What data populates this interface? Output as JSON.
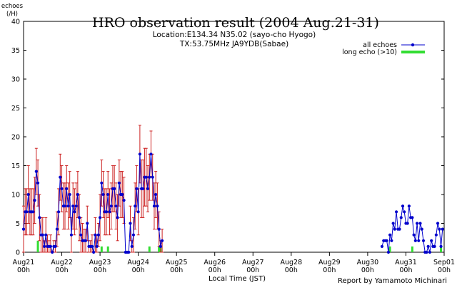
{
  "chart_data": {
    "type": "line",
    "title": "HRO observation result (2004 Aug.21-31)",
    "subtitle_lines": [
      "Location:E134.34 N35.02 (sayo-cho Hyogo)",
      "TX:53.75MHz JA9YDB(Sabae)"
    ],
    "ylabel_lines": [
      "echoes",
      "(/H)"
    ],
    "xlabel": "Local Time (JST)",
    "credit": "Report by Yamamoto Michinari",
    "ylim": [
      0,
      40
    ],
    "yticks": [
      0,
      5,
      10,
      15,
      20,
      25,
      30,
      35,
      40
    ],
    "x_unit": "days since Aug21 00h",
    "xlim": [
      0,
      11
    ],
    "xtick_labels": [
      [
        "Aug21",
        "00h"
      ],
      [
        "Aug22",
        "00h"
      ],
      [
        "Aug23",
        "00h"
      ],
      [
        "Aug24",
        "00h"
      ],
      [
        "Aug25",
        "00h"
      ],
      [
        "Aug26",
        "00h"
      ],
      [
        "Aug27",
        "00h"
      ],
      [
        "Aug28",
        "00h"
      ],
      [
        "Aug29",
        "00h"
      ],
      [
        "Aug30",
        "00h"
      ],
      [
        "Aug31",
        "00h"
      ],
      [
        "Sep01",
        "00h"
      ]
    ],
    "grid": false,
    "legend": {
      "position": "top-right"
    },
    "colors": {
      "all": "#0000cc",
      "errorbar": "#cc2222",
      "long": "#33dd33",
      "axis": "#000000"
    },
    "series": [
      {
        "name": "all echoes",
        "segments": [
          {
            "x": [
              0.0,
              0.042,
              0.083,
              0.125,
              0.167,
              0.208,
              0.25,
              0.292,
              0.333,
              0.375,
              0.417,
              0.458,
              0.5,
              0.542,
              0.583,
              0.625,
              0.667,
              0.708,
              0.75,
              0.792,
              0.833,
              0.875,
              0.917,
              0.958,
              1.0,
              1.042,
              1.083,
              1.125,
              1.167,
              1.208,
              1.25,
              1.292,
              1.333,
              1.375,
              1.417,
              1.458,
              1.5,
              1.542,
              1.583,
              1.625,
              1.667,
              1.708,
              1.75,
              1.792,
              1.833,
              1.875,
              1.917,
              1.958,
              2.0,
              2.042,
              2.083,
              2.125,
              2.167,
              2.208,
              2.25,
              2.292,
              2.333,
              2.375,
              2.417,
              2.458,
              2.5,
              2.542,
              2.583,
              2.625,
              2.667,
              2.708,
              2.75,
              2.792,
              2.833,
              2.875,
              2.917,
              2.958,
              3.0,
              3.042,
              3.083,
              3.125,
              3.167,
              3.208,
              3.25,
              3.292,
              3.333,
              3.375,
              3.417,
              3.458,
              3.5,
              3.542,
              3.583,
              3.625
            ],
            "y": [
              4,
              7,
              7,
              10,
              7,
              7,
              7,
              9,
              14,
              12,
              6,
              3,
              3,
              1,
              3,
              1,
              1,
              1,
              0,
              1,
              1,
              4,
              7,
              13,
              11,
              8,
              8,
              11,
              8,
              10,
              3,
              8,
              7,
              8,
              10,
              6,
              3,
              2,
              2,
              2,
              5,
              1,
              1,
              1,
              0,
              3,
              1,
              3,
              6,
              12,
              10,
              7,
              7,
              10,
              7,
              8,
              11,
              11,
              8,
              6,
              12,
              10,
              10,
              9,
              0,
              0,
              0,
              5,
              1,
              3,
              8,
              11,
              7,
              17,
              11,
              11,
              13,
              13,
              11,
              13,
              17,
              13,
              8,
              10,
              8,
              4,
              1,
              2
            ]
          },
          {
            "x": [
              9.375,
              9.417,
              9.458,
              9.5,
              9.542,
              9.583,
              9.625,
              9.667,
              9.708,
              9.75,
              9.792,
              9.833,
              9.875,
              9.917,
              9.958,
              10.0,
              10.042,
              10.083,
              10.125,
              10.167,
              10.208,
              10.25,
              10.292,
              10.333,
              10.375,
              10.417,
              10.458,
              10.5,
              10.542,
              10.583,
              10.625,
              10.667,
              10.708,
              10.75,
              10.792,
              10.833,
              10.875,
              10.917,
              10.958
            ],
            "y": [
              1,
              2,
              2,
              2,
              0,
              3,
              2,
              5,
              4,
              7,
              4,
              4,
              6,
              8,
              7,
              5,
              5,
              8,
              6,
              6,
              3,
              2,
              5,
              2,
              5,
              4,
              2,
              0,
              0,
              1,
              0,
              2,
              1,
              1,
              3,
              5,
              4,
              1,
              4
            ]
          }
        ],
        "error": [
          4,
          4,
          4,
          5,
          4,
          4,
          4,
          4,
          4,
          4,
          4,
          3,
          3,
          1,
          3,
          2,
          1,
          2,
          0,
          1,
          1,
          3,
          4,
          4,
          4,
          4,
          4,
          4,
          4,
          4,
          3,
          4,
          4,
          4,
          4,
          4,
          3,
          3,
          2,
          2,
          3,
          1,
          1,
          2,
          0,
          3,
          2,
          2,
          4,
          4,
          4,
          4,
          4,
          4,
          4,
          4,
          4,
          4,
          4,
          4,
          4,
          4,
          4,
          4,
          0,
          0,
          0,
          3,
          1,
          3,
          4,
          4,
          4,
          5,
          5,
          5,
          5,
          5,
          4,
          4,
          4,
          4,
          4,
          4,
          4,
          3,
          1,
          2
        ]
      },
      {
        "name": "long echo (>10)",
        "bars_x": [
          0.375,
          2.042,
          2.208,
          3.292,
          3.542,
          3.583,
          9.583,
          10.167,
          10.917
        ],
        "bars_y": [
          2,
          1,
          1,
          1,
          1,
          1,
          1,
          1,
          1
        ]
      }
    ]
  }
}
